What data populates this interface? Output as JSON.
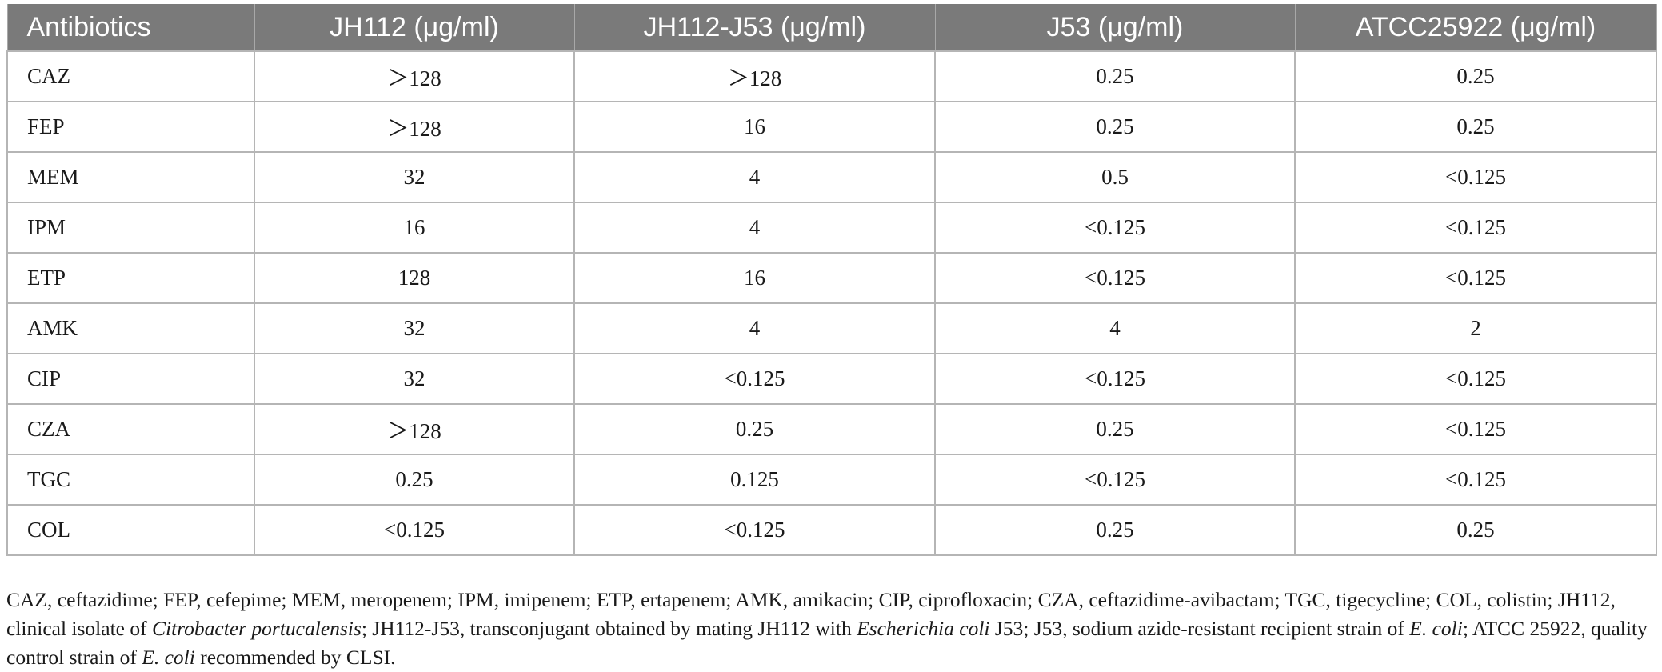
{
  "table": {
    "headers": [
      "Antibiotics",
      "JH112 (μg/ml)",
      "JH112-J53 (μg/ml)",
      "J53 (μg/ml)",
      "ATCC25922 (μg/ml)"
    ],
    "rows": [
      [
        "CAZ",
        "＞128",
        "＞128",
        "0.25",
        "0.25"
      ],
      [
        "FEP",
        "＞128",
        "16",
        "0.25",
        "0.25"
      ],
      [
        "MEM",
        "32",
        "4",
        "0.5",
        "<0.125"
      ],
      [
        "IPM",
        "16",
        "4",
        "<0.125",
        "<0.125"
      ],
      [
        "ETP",
        "128",
        "16",
        "<0.125",
        "<0.125"
      ],
      [
        "AMK",
        "32",
        "4",
        "4",
        "2"
      ],
      [
        "CIP",
        "32",
        "<0.125",
        "<0.125",
        "<0.125"
      ],
      [
        "CZA",
        "＞128",
        "0.25",
        "0.25",
        "<0.125"
      ],
      [
        "TGC",
        "0.25",
        "0.125",
        "<0.125",
        "<0.125"
      ],
      [
        "COL",
        "<0.125",
        "<0.125",
        "0.25",
        "0.25"
      ]
    ]
  },
  "footnote": {
    "part1": "CAZ, ceftazidime; FEP, cefepime; MEM, meropenem; IPM, imipenem; ETP, ertapenem; AMK, amikacin; CIP, ciprofloxacin; CZA, ceftazidime-avibactam; TGC, tigecycline; COL, colistin; JH112, clinical isolate of ",
    "species1": "Citrobacter portucalensis",
    "part2": "; JH112-J53, transconjugant obtained by mating JH112 with ",
    "species2": "Escherichia coli",
    "part3": " J53; J53, sodium azide-resistant recipient strain of ",
    "species3": "E. coli",
    "part4": "; ATCC 25922, quality control strain of ",
    "species4": "E. coli",
    "part5": " recommended by CLSI."
  }
}
